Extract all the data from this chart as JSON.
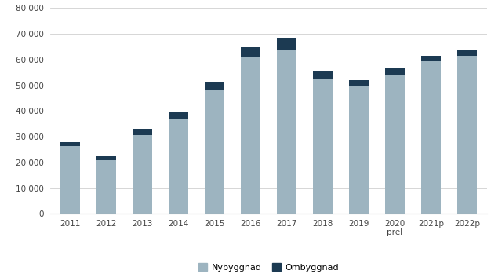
{
  "years": [
    "2011",
    "2012",
    "2013",
    "2014",
    "2015",
    "2016",
    "2017",
    "2018",
    "2019",
    "2020\nprel",
    "2021p",
    "2022p"
  ],
  "nybyggnad": [
    26500,
    21000,
    30500,
    37000,
    48000,
    61000,
    63500,
    52500,
    49500,
    54000,
    59500,
    61500
  ],
  "ombyggnad": [
    1500,
    1500,
    2500,
    2500,
    3000,
    4000,
    5000,
    3000,
    2500,
    2500,
    2000,
    2000
  ],
  "nybyggnad_color": "#9db4c0",
  "ombyggnad_color": "#1c3a52",
  "background_color": "#ffffff",
  "ylabel_ticks": [
    "0",
    "10 000",
    "20 000",
    "30 000",
    "40 000",
    "50 000",
    "60 000",
    "70 000",
    "80 000"
  ],
  "ytick_values": [
    0,
    10000,
    20000,
    30000,
    40000,
    50000,
    60000,
    70000,
    80000
  ],
  "ylim": [
    0,
    80000
  ],
  "legend_nybyggnad": "Nybyggnad",
  "legend_ombyggnad": "Ombyggnad",
  "bar_width": 0.55
}
